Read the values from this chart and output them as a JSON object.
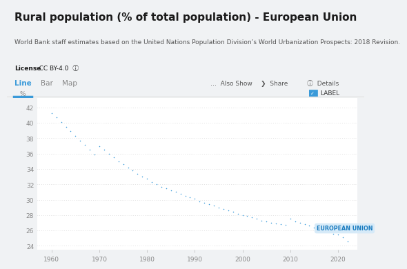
{
  "title": "Rural population (% of total population) - European Union",
  "subtitle": "World Bank staff estimates based on the United Nations Population Division’s World Urbanization Prospects: 2018 Revision.",
  "license_bold": "License",
  "license_rest": " : CC BY-4.0  ⓘ",
  "ylabel": "%",
  "years": [
    1960,
    1961,
    1962,
    1963,
    1964,
    1965,
    1966,
    1967,
    1968,
    1969,
    1970,
    1971,
    1972,
    1973,
    1974,
    1975,
    1976,
    1977,
    1978,
    1979,
    1980,
    1981,
    1982,
    1983,
    1984,
    1985,
    1986,
    1987,
    1988,
    1989,
    1990,
    1991,
    1992,
    1993,
    1994,
    1995,
    1996,
    1997,
    1998,
    1999,
    2000,
    2001,
    2002,
    2003,
    2004,
    2005,
    2006,
    2007,
    2008,
    2009,
    2010,
    2011,
    2012,
    2013,
    2014,
    2015,
    2016,
    2017,
    2018,
    2019,
    2020,
    2021,
    2022
  ],
  "values": [
    41.3,
    40.7,
    40.1,
    39.5,
    38.9,
    38.3,
    37.7,
    37.1,
    36.5,
    35.9,
    37.0,
    36.5,
    36.0,
    35.5,
    35.0,
    34.6,
    34.2,
    33.8,
    33.4,
    33.0,
    32.7,
    32.3,
    32.0,
    31.7,
    31.5,
    31.2,
    31.0,
    30.8,
    30.5,
    30.3,
    30.1,
    29.8,
    29.6,
    29.4,
    29.2,
    29.0,
    28.8,
    28.6,
    28.4,
    28.2,
    28.0,
    27.9,
    27.7,
    27.5,
    27.3,
    27.2,
    27.0,
    26.9,
    26.8,
    26.7,
    27.5,
    27.2,
    27.0,
    26.8,
    26.6,
    26.4,
    26.2,
    26.0,
    25.8,
    25.6,
    25.5,
    25.1,
    24.6
  ],
  "line_color": "#3a9ad9",
  "dot_color": "#3a9ad9",
  "grid_color": "#c8c8c8",
  "background_color": "#ffffff",
  "outer_bg": "#f0f2f4",
  "label_text": "EUROPEAN UNION",
  "label_bg": "#d6eaf8",
  "label_color": "#1a7bbf",
  "yticks": [
    24,
    26,
    28,
    30,
    32,
    34,
    36,
    38,
    40,
    42
  ],
  "xticks": [
    1960,
    1970,
    1980,
    1990,
    2000,
    2010,
    2020
  ],
  "ylim": [
    23.5,
    43.2
  ],
  "xlim": [
    1957,
    2024
  ],
  "tabs": [
    "Line",
    "Bar",
    "Map"
  ],
  "active_tab": "Line",
  "active_tab_color": "#3a9ad9",
  "title_fontsize": 11,
  "subtitle_fontsize": 6.5,
  "license_fontsize": 6.5,
  "tab_fontsize": 7.5,
  "nav_fontsize": 6.5,
  "tick_fontsize": 6.5,
  "ylabel_fontsize": 6.5
}
